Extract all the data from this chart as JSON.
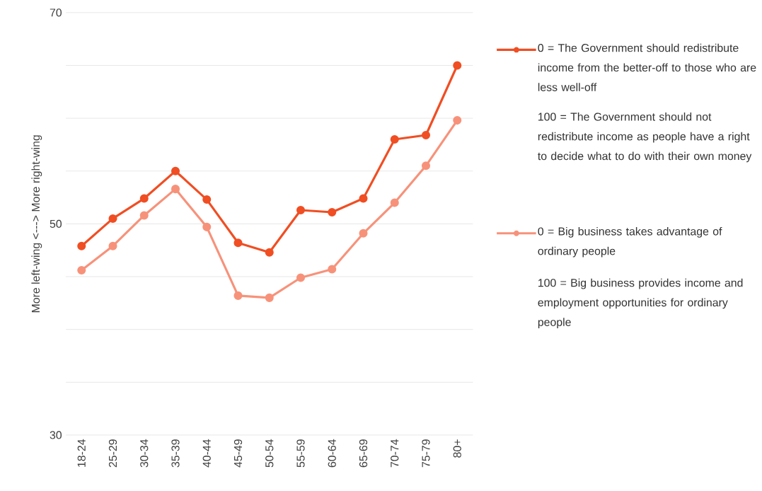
{
  "chart_data": {
    "type": "line",
    "ylabel": "More left-wing  <--->  More right-wing",
    "categories": [
      "18-24",
      "25-29",
      "30-34",
      "35-39",
      "40-44",
      "45-49",
      "50-54",
      "55-59",
      "60-64",
      "65-69",
      "70-74",
      "75-79",
      "80+"
    ],
    "series": [
      {
        "name": "0 = The Government should redistribute income from the better-off to those who are less well-off",
        "color": "#f04e23",
        "values": [
          47.9,
          50.5,
          52.4,
          55.0,
          52.3,
          48.2,
          47.3,
          51.3,
          51.1,
          52.4,
          58.0,
          58.4,
          65.0
        ]
      },
      {
        "name": "0 = Big business takes advantage of ordinary people",
        "color": "#f7927a",
        "values": [
          45.6,
          47.9,
          50.8,
          53.3,
          49.7,
          43.2,
          43.0,
          44.9,
          45.7,
          49.1,
          52.0,
          55.5,
          59.8
        ]
      }
    ],
    "annotations": [
      "100 = The Government should not redistribute income as people have a right to decide what to do with their own money",
      "100 = Big business provides income and employment opportunities for ordinary people"
    ],
    "ylim": [
      30,
      70
    ],
    "yticks": [
      30,
      {
        "value": 35,
        "label": null
      },
      {
        "value": 40,
        "label": null
      },
      {
        "value": 45,
        "label": null
      },
      50,
      {
        "value": 55,
        "label": null
      },
      {
        "value": 60,
        "label": null
      },
      {
        "value": 65,
        "label": null
      },
      70
    ],
    "grid": "y",
    "legend": "right",
    "marker": "circle",
    "line_style": "solid"
  }
}
